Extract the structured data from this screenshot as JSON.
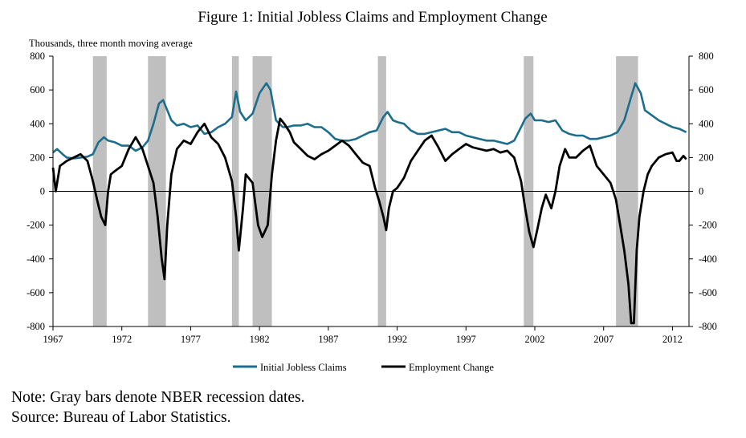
{
  "chart_data": {
    "type": "line",
    "title": "Figure 1: Initial Jobless Claims and Employment Change",
    "units_label": "Thousands, three month moving average",
    "xlabel": "",
    "ylabel": "",
    "x_range": [
      1967.0,
      2013.2
    ],
    "ylim": [
      -800,
      800
    ],
    "y_ticks": [
      -800,
      -600,
      -400,
      -200,
      0,
      200,
      400,
      600,
      800
    ],
    "x_ticks": [
      1967,
      1972,
      1977,
      1982,
      1987,
      1992,
      1997,
      2002,
      2007,
      2012
    ],
    "grid": false,
    "zero_line": true,
    "legend_position": "bottom-center",
    "recessions": [
      [
        1969.9,
        1970.9
      ],
      [
        1973.9,
        1975.2
      ],
      [
        1980.0,
        1980.5
      ],
      [
        1981.5,
        1982.9
      ],
      [
        1990.6,
        1991.2
      ],
      [
        2001.2,
        2001.9
      ],
      [
        2007.9,
        2009.5
      ]
    ],
    "series": [
      {
        "name": "Initial Jobless Claims",
        "color": "#1c6e8c",
        "x": [
          1967.0,
          1967.3,
          1967.7,
          1968.0,
          1968.5,
          1969.0,
          1969.5,
          1969.9,
          1970.3,
          1970.7,
          1971.0,
          1971.5,
          1972.0,
          1972.5,
          1973.0,
          1973.5,
          1973.9,
          1974.3,
          1974.7,
          1975.0,
          1975.3,
          1975.6,
          1976.0,
          1976.5,
          1977.0,
          1977.5,
          1978.0,
          1978.5,
          1979.0,
          1979.5,
          1980.0,
          1980.3,
          1980.6,
          1981.0,
          1981.5,
          1982.0,
          1982.5,
          1982.8,
          1983.2,
          1983.7,
          1984.0,
          1984.5,
          1985.0,
          1985.5,
          1986.0,
          1986.5,
          1987.0,
          1987.5,
          1988.0,
          1988.5,
          1989.0,
          1989.5,
          1990.0,
          1990.5,
          1991.0,
          1991.3,
          1991.7,
          1992.0,
          1992.5,
          1993.0,
          1993.5,
          1994.0,
          1994.5,
          1995.0,
          1995.5,
          1996.0,
          1996.5,
          1997.0,
          1997.5,
          1998.0,
          1998.5,
          1999.0,
          1999.5,
          2000.0,
          2000.5,
          2001.0,
          2001.3,
          2001.7,
          2002.0,
          2002.5,
          2003.0,
          2003.5,
          2004.0,
          2004.5,
          2005.0,
          2005.5,
          2006.0,
          2006.5,
          2007.0,
          2007.5,
          2008.0,
          2008.5,
          2009.0,
          2009.3,
          2009.7,
          2010.0,
          2010.5,
          2011.0,
          2011.5,
          2012.0,
          2012.5,
          2013.0
        ],
        "values": [
          230,
          250,
          220,
          200,
          195,
          200,
          205,
          220,
          290,
          320,
          300,
          290,
          270,
          270,
          240,
          260,
          300,
          400,
          520,
          540,
          480,
          420,
          390,
          400,
          380,
          390,
          340,
          350,
          380,
          400,
          440,
          590,
          470,
          420,
          460,
          580,
          640,
          600,
          420,
          380,
          380,
          390,
          390,
          400,
          380,
          380,
          350,
          310,
          300,
          300,
          310,
          330,
          350,
          360,
          440,
          470,
          420,
          410,
          400,
          360,
          340,
          340,
          350,
          360,
          370,
          350,
          350,
          330,
          320,
          310,
          300,
          300,
          290,
          280,
          300,
          380,
          430,
          460,
          420,
          420,
          410,
          420,
          360,
          340,
          330,
          330,
          310,
          310,
          320,
          330,
          350,
          420,
          560,
          640,
          580,
          480,
          450,
          420,
          400,
          380,
          370,
          350
        ]
      },
      {
        "name": "Employment Change",
        "color": "#000000",
        "x": [
          1967.0,
          1967.2,
          1967.5,
          1968.0,
          1968.5,
          1969.0,
          1969.5,
          1969.9,
          1970.2,
          1970.5,
          1970.8,
          1971.0,
          1971.2,
          1971.5,
          1972.0,
          1972.5,
          1973.0,
          1973.5,
          1973.9,
          1974.3,
          1974.6,
          1974.9,
          1975.1,
          1975.3,
          1975.6,
          1976.0,
          1976.5,
          1977.0,
          1977.5,
          1978.0,
          1978.5,
          1979.0,
          1979.5,
          1980.0,
          1980.3,
          1980.5,
          1980.8,
          1981.0,
          1981.5,
          1981.9,
          1982.2,
          1982.6,
          1982.9,
          1983.2,
          1983.5,
          1983.8,
          1984.2,
          1984.5,
          1985.0,
          1985.5,
          1986.0,
          1986.5,
          1987.0,
          1987.5,
          1988.0,
          1988.5,
          1989.0,
          1989.5,
          1990.0,
          1990.4,
          1990.7,
          1991.0,
          1991.2,
          1991.4,
          1991.7,
          1992.0,
          1992.5,
          1993.0,
          1993.5,
          1994.0,
          1994.5,
          1995.0,
          1995.5,
          1996.0,
          1996.5,
          1997.0,
          1997.5,
          1998.0,
          1998.5,
          1999.0,
          1999.5,
          2000.0,
          2000.5,
          2001.0,
          2001.3,
          2001.6,
          2001.9,
          2002.2,
          2002.5,
          2002.8,
          2003.2,
          2003.5,
          2003.8,
          2004.2,
          2004.5,
          2005.0,
          2005.5,
          2006.0,
          2006.5,
          2007.0,
          2007.5,
          2007.9,
          2008.2,
          2008.5,
          2008.8,
          2009.0,
          2009.2,
          2009.4,
          2009.6,
          2009.9,
          2010.2,
          2010.5,
          2011.0,
          2011.5,
          2012.0,
          2012.3,
          2012.5,
          2012.8,
          2013.0
        ],
        "values": [
          140,
          0,
          150,
          180,
          200,
          220,
          180,
          60,
          -50,
          -150,
          -200,
          0,
          100,
          120,
          150,
          250,
          320,
          250,
          150,
          50,
          -150,
          -400,
          -520,
          -200,
          100,
          250,
          300,
          280,
          350,
          400,
          320,
          280,
          200,
          60,
          -150,
          -350,
          -100,
          100,
          50,
          -200,
          -270,
          -200,
          100,
          300,
          430,
          400,
          350,
          290,
          250,
          210,
          190,
          220,
          240,
          270,
          300,
          270,
          220,
          170,
          150,
          20,
          -60,
          -150,
          -230,
          -100,
          0,
          20,
          80,
          180,
          240,
          300,
          330,
          260,
          180,
          220,
          250,
          280,
          260,
          250,
          240,
          250,
          230,
          240,
          200,
          60,
          -100,
          -240,
          -330,
          -220,
          -100,
          -20,
          -100,
          0,
          150,
          250,
          200,
          200,
          240,
          270,
          150,
          100,
          50,
          -50,
          -200,
          -350,
          -550,
          -780,
          -780,
          -350,
          -150,
          0,
          100,
          150,
          200,
          220,
          230,
          180,
          180,
          210,
          190
        ]
      }
    ]
  },
  "notes": [
    "Note: Gray bars denote NBER recession dates.",
    "Source: Bureau of Labor Statistics."
  ]
}
